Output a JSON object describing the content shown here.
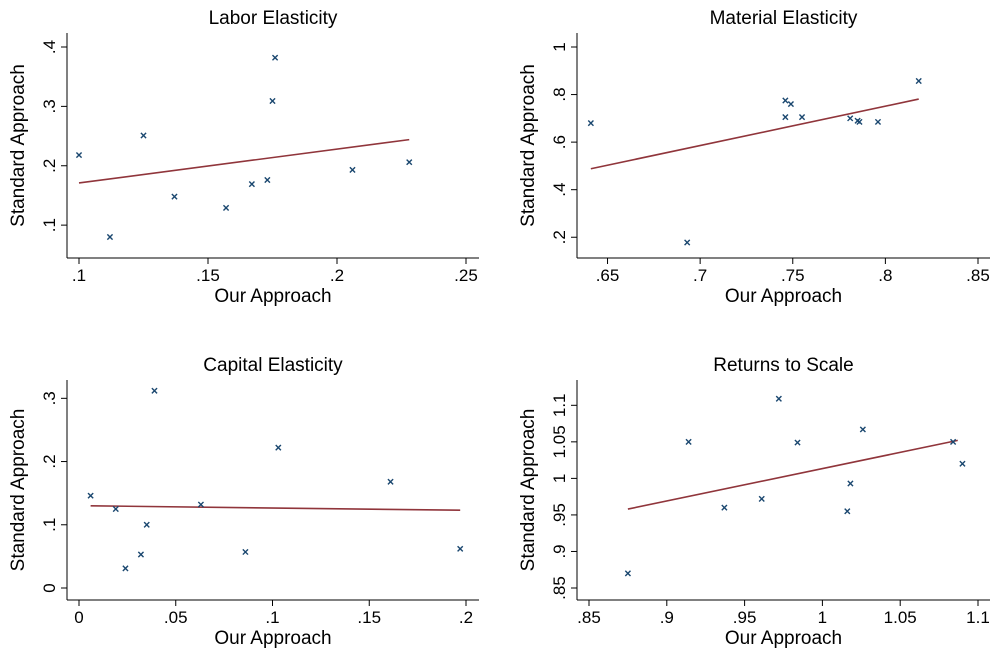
{
  "chart_data": [
    {
      "type": "scatter",
      "title": "Labor Elasticity",
      "xlabel": "Our Approach",
      "ylabel": "Standard Approach",
      "xlim": [
        0.1,
        0.25
      ],
      "ylim": [
        0.08,
        0.4
      ],
      "xticks": [
        0.1,
        0.15,
        0.2,
        0.25
      ],
      "xtick_labels": [
        ".1",
        ".15",
        ".2",
        ".25"
      ],
      "yticks": [
        0.1,
        0.2,
        0.3,
        0.4
      ],
      "ytick_labels": [
        ".1",
        ".2",
        ".3",
        ".4"
      ],
      "points": [
        {
          "x": 0.1,
          "y": 0.218
        },
        {
          "x": 0.112,
          "y": 0.08
        },
        {
          "x": 0.125,
          "y": 0.251
        },
        {
          "x": 0.137,
          "y": 0.148
        },
        {
          "x": 0.157,
          "y": 0.129
        },
        {
          "x": 0.167,
          "y": 0.169
        },
        {
          "x": 0.173,
          "y": 0.176
        },
        {
          "x": 0.175,
          "y": 0.309
        },
        {
          "x": 0.176,
          "y": 0.382
        },
        {
          "x": 0.206,
          "y": 0.193
        },
        {
          "x": 0.228,
          "y": 0.206
        }
      ],
      "fit_line": {
        "x": [
          0.1,
          0.228
        ],
        "y": [
          0.171,
          0.244
        ]
      },
      "grid": false,
      "marker_color": "#1a476f",
      "line_color": "#90353b"
    },
    {
      "type": "scatter",
      "title": "Material Elasticity",
      "xlabel": "Our Approach",
      "ylabel": "Standard Approach",
      "xlim": [
        0.64,
        0.85
      ],
      "ylim": [
        0.18,
        1.0
      ],
      "xticks": [
        0.65,
        0.7,
        0.75,
        0.8,
        0.85
      ],
      "xtick_labels": [
        ".65",
        ".7",
        ".75",
        ".8",
        ".85"
      ],
      "yticks": [
        0.2,
        0.4,
        0.6,
        0.8,
        1
      ],
      "ytick_labels": [
        ".2",
        ".4",
        ".6",
        ".8",
        "1"
      ],
      "points": [
        {
          "x": 0.641,
          "y": 0.68
        },
        {
          "x": 0.693,
          "y": 0.178
        },
        {
          "x": 0.746,
          "y": 0.775
        },
        {
          "x": 0.749,
          "y": 0.76
        },
        {
          "x": 0.746,
          "y": 0.705
        },
        {
          "x": 0.755,
          "y": 0.705
        },
        {
          "x": 0.781,
          "y": 0.7
        },
        {
          "x": 0.785,
          "y": 0.69
        },
        {
          "x": 0.786,
          "y": 0.685
        },
        {
          "x": 0.796,
          "y": 0.685
        },
        {
          "x": 0.818,
          "y": 0.857
        }
      ],
      "fit_line": {
        "x": [
          0.641,
          0.818
        ],
        "y": [
          0.488,
          0.781
        ]
      },
      "grid": false,
      "marker_color": "#1a476f",
      "line_color": "#90353b"
    },
    {
      "type": "scatter",
      "title": "Capital Elasticity",
      "xlabel": "Our Approach",
      "ylabel": "Standard Approach",
      "xlim": [
        0,
        0.2
      ],
      "ylim": [
        0,
        0.31
      ],
      "xticks": [
        0,
        0.05,
        0.1,
        0.15,
        0.2
      ],
      "xtick_labels": [
        "0",
        ".05",
        ".1",
        ".15",
        ".2"
      ],
      "yticks": [
        0,
        0.1,
        0.2,
        0.3
      ],
      "ytick_labels": [
        "0",
        ".1",
        ".2",
        ".3"
      ],
      "points": [
        {
          "x": 0.006,
          "y": 0.146
        },
        {
          "x": 0.019,
          "y": 0.125
        },
        {
          "x": 0.024,
          "y": 0.031
        },
        {
          "x": 0.032,
          "y": 0.053
        },
        {
          "x": 0.035,
          "y": 0.1
        },
        {
          "x": 0.039,
          "y": 0.312
        },
        {
          "x": 0.063,
          "y": 0.132
        },
        {
          "x": 0.086,
          "y": 0.057
        },
        {
          "x": 0.103,
          "y": 0.222
        },
        {
          "x": 0.161,
          "y": 0.168
        },
        {
          "x": 0.197,
          "y": 0.062
        }
      ],
      "fit_line": {
        "x": [
          0.006,
          0.197
        ],
        "y": [
          0.13,
          0.123
        ]
      },
      "grid": false,
      "marker_color": "#1a476f",
      "line_color": "#90353b"
    },
    {
      "type": "scatter",
      "title": "Returns to Scale",
      "xlabel": "Our Approach",
      "ylabel": "Standard Approach",
      "xlim": [
        0.85,
        1.1
      ],
      "ylim": [
        0.85,
        1.11
      ],
      "xticks": [
        0.85,
        0.9,
        0.95,
        1,
        1.05,
        1.1
      ],
      "xtick_labels": [
        ".85",
        ".9",
        ".95",
        "1",
        "1.05",
        "1.1"
      ],
      "yticks": [
        0.85,
        0.9,
        0.95,
        1,
        1.05,
        1.1
      ],
      "ytick_labels": [
        ".85",
        ".9",
        ".95",
        "1",
        "1.05",
        "1.1"
      ],
      "points": [
        {
          "x": 0.875,
          "y": 0.87
        },
        {
          "x": 0.914,
          "y": 1.05
        },
        {
          "x": 0.937,
          "y": 0.96
        },
        {
          "x": 0.961,
          "y": 0.972
        },
        {
          "x": 0.972,
          "y": 1.109
        },
        {
          "x": 0.984,
          "y": 1.049
        },
        {
          "x": 1.016,
          "y": 0.955
        },
        {
          "x": 1.018,
          "y": 0.993
        },
        {
          "x": 1.026,
          "y": 1.067
        },
        {
          "x": 1.084,
          "y": 1.05
        },
        {
          "x": 1.09,
          "y": 1.02
        }
      ],
      "fit_line": {
        "x": [
          0.875,
          1.087
        ],
        "y": [
          0.958,
          1.052
        ]
      },
      "grid": false,
      "marker_color": "#1a476f",
      "line_color": "#90353b"
    }
  ]
}
